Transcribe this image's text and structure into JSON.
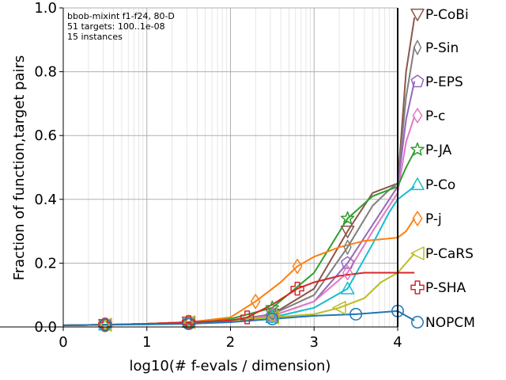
{
  "chart_data": {
    "type": "line",
    "xlabel": "log10(# f-evals / dimension)",
    "ylabel": "Fraction of function,target pairs",
    "xlim": [
      0,
      4.25
    ],
    "ylim": [
      0,
      1.0
    ],
    "x_ticks": [
      "0",
      "1",
      "2",
      "3",
      "4"
    ],
    "y_ticks": [
      "0.0",
      "0.2",
      "0.4",
      "0.6",
      "0.8",
      "1.0"
    ],
    "grid": true,
    "annotations": [
      "bbob-mixint f1-f24, 80-D",
      "51 targets: 100..1e-08",
      "15 instances"
    ],
    "legend_placement": "right (labels at line ends)",
    "series": [
      {
        "name": "P-CoBi",
        "color": "#8c564b",
        "marker": "triangle-down",
        "x": [
          0,
          0.5,
          1,
          1.5,
          2,
          2.5,
          3,
          3.4,
          3.7,
          3.9,
          4.0,
          4.1,
          4.2
        ],
        "y": [
          0.005,
          0.007,
          0.01,
          0.015,
          0.02,
          0.04,
          0.12,
          0.3,
          0.42,
          0.44,
          0.45,
          0.8,
          0.97
        ]
      },
      {
        "name": "P-Sin",
        "color": "#7f7f7f",
        "marker": "diamond-thin",
        "x": [
          0,
          0.5,
          1,
          1.5,
          2,
          2.5,
          3,
          3.4,
          3.7,
          3.9,
          4.0,
          4.1,
          4.2
        ],
        "y": [
          0.005,
          0.007,
          0.01,
          0.015,
          0.02,
          0.04,
          0.1,
          0.25,
          0.38,
          0.43,
          0.45,
          0.72,
          0.88
        ]
      },
      {
        "name": "P-EPS",
        "color": "#9467bd",
        "marker": "pentagon",
        "x": [
          0,
          0.5,
          1,
          1.5,
          2,
          2.5,
          3,
          3.4,
          3.7,
          3.9,
          4.0,
          4.1,
          4.2
        ],
        "y": [
          0.005,
          0.007,
          0.01,
          0.015,
          0.02,
          0.035,
          0.08,
          0.2,
          0.32,
          0.4,
          0.44,
          0.65,
          0.77
        ]
      },
      {
        "name": "P-c",
        "color": "#e377c2",
        "marker": "diamond",
        "x": [
          0,
          0.5,
          1,
          1.5,
          2,
          2.5,
          3,
          3.4,
          3.7,
          3.9,
          4.0,
          4.1,
          4.2
        ],
        "y": [
          0.005,
          0.007,
          0.01,
          0.015,
          0.02,
          0.035,
          0.08,
          0.17,
          0.3,
          0.38,
          0.42,
          0.58,
          0.66
        ]
      },
      {
        "name": "P-JA",
        "color": "#2ca02c",
        "marker": "star",
        "x": [
          0,
          0.5,
          1,
          1.5,
          2,
          2.5,
          3,
          3.4,
          3.7,
          3.9,
          4.0,
          4.1,
          4.2
        ],
        "y": [
          0.005,
          0.007,
          0.01,
          0.015,
          0.025,
          0.06,
          0.17,
          0.34,
          0.41,
          0.43,
          0.44,
          0.5,
          0.55
        ]
      },
      {
        "name": "P-Co",
        "color": "#17becf",
        "marker": "triangle-up",
        "x": [
          0,
          0.5,
          1,
          1.5,
          2,
          2.5,
          3,
          3.4,
          3.7,
          3.9,
          4.0,
          4.1,
          4.2
        ],
        "y": [
          0.005,
          0.007,
          0.01,
          0.015,
          0.02,
          0.03,
          0.06,
          0.12,
          0.26,
          0.36,
          0.4,
          0.42,
          0.44
        ]
      },
      {
        "name": "P-j",
        "color": "#ff7f0e",
        "marker": "diamond",
        "x": [
          0,
          0.5,
          1,
          1.5,
          2,
          2.3,
          2.6,
          2.8,
          3.0,
          3.3,
          3.6,
          3.8,
          4.0,
          4.1,
          4.2
        ],
        "y": [
          0.005,
          0.007,
          0.01,
          0.015,
          0.03,
          0.08,
          0.14,
          0.19,
          0.22,
          0.25,
          0.27,
          0.275,
          0.28,
          0.3,
          0.34
        ]
      },
      {
        "name": "P-CaRS",
        "color": "#bcbd22",
        "marker": "triangle-left",
        "x": [
          0,
          0.5,
          1,
          1.5,
          2,
          2.5,
          3,
          3.3,
          3.6,
          3.8,
          4.0,
          4.1,
          4.2
        ],
        "y": [
          0.005,
          0.007,
          0.01,
          0.015,
          0.02,
          0.03,
          0.04,
          0.06,
          0.09,
          0.14,
          0.17,
          0.2,
          0.23
        ]
      },
      {
        "name": "P-SHA",
        "color": "#d62728",
        "marker": "plus",
        "x": [
          0,
          0.5,
          1,
          1.5,
          2,
          2.2,
          2.5,
          2.8,
          3.0,
          3.3,
          3.6,
          4.0,
          4.1,
          4.2
        ],
        "y": [
          0.005,
          0.007,
          0.01,
          0.015,
          0.02,
          0.03,
          0.07,
          0.12,
          0.14,
          0.16,
          0.17,
          0.17,
          0.17,
          0.17
        ]
      },
      {
        "name": "NOPCM",
        "color": "#1f77b4",
        "marker": "circle",
        "x": [
          0,
          0.5,
          1,
          1.5,
          2,
          2.5,
          3,
          3.5,
          4.0,
          4.2
        ],
        "y": [
          0.005,
          0.007,
          0.008,
          0.01,
          0.015,
          0.025,
          0.035,
          0.04,
          0.05,
          0.02
        ]
      }
    ]
  }
}
